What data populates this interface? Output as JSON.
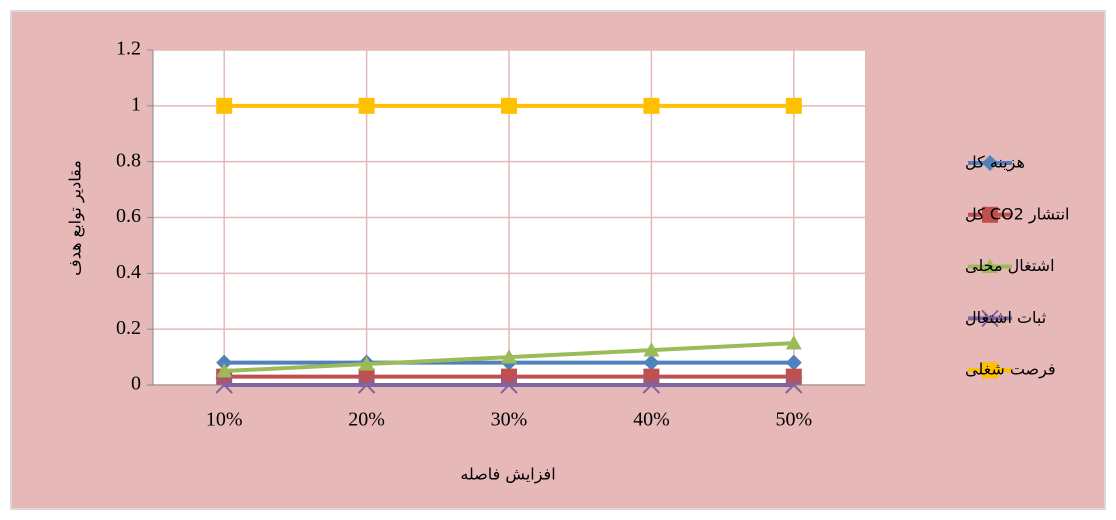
{
  "chart_data": {
    "type": "line",
    "x_label": "افزایش فاصله",
    "y_label": "مقادیر توابع هدف",
    "categories": [
      "10%",
      "20%",
      "30%",
      "40%",
      "50%"
    ],
    "series": [
      {
        "name": "هزینه کل",
        "color": "#4f81bd",
        "marker": "diamond",
        "values": [
          0.08,
          0.08,
          0.08,
          0.08,
          0.08
        ]
      },
      {
        "name": "انتشار CO2 کل",
        "color": "#c0504d",
        "marker": "square",
        "values": [
          0.03,
          0.03,
          0.03,
          0.03,
          0.03
        ]
      },
      {
        "name": "اشتغال محلی",
        "color": "#9bbb59",
        "marker": "triangle",
        "values": [
          0.05,
          0.075,
          0.1,
          0.125,
          0.15
        ]
      },
      {
        "name": "ثبات اشتغال",
        "color": "#8064a2",
        "marker": "x",
        "values": [
          0,
          0,
          0,
          0,
          0
        ]
      },
      {
        "name": "فرصت شغلی",
        "color": "#ffc000",
        "marker": "square",
        "values": [
          1,
          1,
          1,
          1,
          1
        ]
      }
    ],
    "ylim": [
      0,
      1.2
    ],
    "yticks": [
      0,
      0.2,
      0.4,
      0.6,
      0.8,
      1,
      1.2
    ],
    "grid": true,
    "legend": "right"
  }
}
